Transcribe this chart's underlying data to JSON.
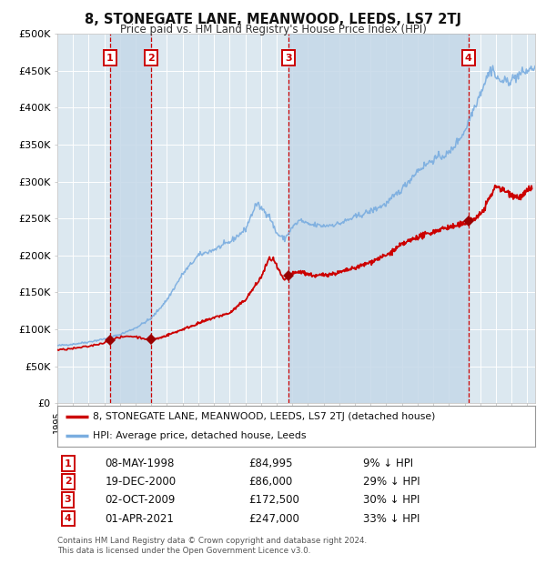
{
  "title": "8, STONEGATE LANE, MEANWOOD, LEEDS, LS7 2TJ",
  "subtitle": "Price paid vs. HM Land Registry's House Price Index (HPI)",
  "background_color": "#ffffff",
  "plot_bg_color": "#dce8f0",
  "grid_color": "#ffffff",
  "red_line_color": "#cc0000",
  "blue_line_color": "#7aade0",
  "sale_marker_color": "#990000",
  "vline_color": "#cc0000",
  "shade_color": "#c5d8e8",
  "ylim": [
    0,
    500000
  ],
  "yticks": [
    0,
    50000,
    100000,
    150000,
    200000,
    250000,
    300000,
    350000,
    400000,
    450000,
    500000
  ],
  "ytick_labels": [
    "£0",
    "£50K",
    "£100K",
    "£150K",
    "£200K",
    "£250K",
    "£300K",
    "£350K",
    "£400K",
    "£450K",
    "£500K"
  ],
  "sales": [
    {
      "num": 1,
      "date_str": "08-MAY-1998",
      "date_num": 1998.36,
      "price": 84995,
      "pct": "9%",
      "direction": "↓"
    },
    {
      "num": 2,
      "date_str": "19-DEC-2000",
      "date_num": 2000.97,
      "price": 86000,
      "pct": "29%",
      "direction": "↓"
    },
    {
      "num": 3,
      "date_str": "02-OCT-2009",
      "date_num": 2009.75,
      "price": 172500,
      "pct": "30%",
      "direction": "↓"
    },
    {
      "num": 4,
      "date_str": "01-APR-2021",
      "date_num": 2021.25,
      "price": 247000,
      "pct": "33%",
      "direction": "↓"
    }
  ],
  "legend_line1": "8, STONEGATE LANE, MEANWOOD, LEEDS, LS7 2TJ (detached house)",
  "legend_line2": "HPI: Average price, detached house, Leeds",
  "footer1": "Contains HM Land Registry data © Crown copyright and database right 2024.",
  "footer2": "This data is licensed under the Open Government Licence v3.0.",
  "xmin": 1995.0,
  "xmax": 2025.5,
  "hpi_anchors": [
    [
      1995.0,
      78000
    ],
    [
      1996.0,
      80000
    ],
    [
      1997.0,
      83000
    ],
    [
      1998.0,
      87000
    ],
    [
      1999.0,
      93000
    ],
    [
      2000.0,
      102000
    ],
    [
      2001.0,
      115000
    ],
    [
      2002.0,
      140000
    ],
    [
      2003.0,
      175000
    ],
    [
      2004.0,
      200000
    ],
    [
      2005.0,
      208000
    ],
    [
      2006.0,
      218000
    ],
    [
      2007.0,
      235000
    ],
    [
      2007.7,
      270000
    ],
    [
      2008.5,
      255000
    ],
    [
      2009.0,
      230000
    ],
    [
      2009.5,
      222000
    ],
    [
      2010.0,
      238000
    ],
    [
      2010.5,
      248000
    ],
    [
      2011.0,
      242000
    ],
    [
      2012.0,
      240000
    ],
    [
      2013.0,
      243000
    ],
    [
      2014.0,
      252000
    ],
    [
      2015.0,
      260000
    ],
    [
      2016.0,
      270000
    ],
    [
      2017.0,
      290000
    ],
    [
      2018.0,
      315000
    ],
    [
      2019.0,
      330000
    ],
    [
      2020.0,
      338000
    ],
    [
      2021.0,
      368000
    ],
    [
      2021.5,
      395000
    ],
    [
      2022.0,
      420000
    ],
    [
      2022.5,
      445000
    ],
    [
      2022.8,
      455000
    ],
    [
      2023.0,
      440000
    ],
    [
      2023.5,
      435000
    ],
    [
      2024.0,
      438000
    ],
    [
      2024.5,
      445000
    ],
    [
      2025.0,
      450000
    ],
    [
      2025.5,
      455000
    ]
  ],
  "red_anchors_seg1": [
    [
      1995.0,
      72000
    ],
    [
      1996.0,
      74000
    ],
    [
      1997.0,
      77000
    ],
    [
      1998.0,
      82000
    ],
    [
      1998.36,
      84995
    ],
    [
      1998.8,
      88000
    ],
    [
      1999.5,
      91000
    ],
    [
      2000.0,
      90000
    ],
    [
      2000.97,
      86000
    ]
  ],
  "red_anchors_seg2": [
    [
      2000.97,
      86000
    ],
    [
      2001.5,
      88000
    ],
    [
      2002.0,
      92000
    ],
    [
      2002.5,
      96000
    ],
    [
      2003.0,
      100000
    ],
    [
      2003.5,
      104000
    ],
    [
      2004.0,
      108000
    ],
    [
      2005.0,
      116000
    ],
    [
      2006.0,
      122000
    ],
    [
      2007.0,
      140000
    ],
    [
      2007.5,
      155000
    ],
    [
      2008.0,
      170000
    ],
    [
      2008.5,
      195000
    ],
    [
      2008.8,
      195000
    ],
    [
      2009.0,
      185000
    ],
    [
      2009.5,
      165000
    ],
    [
      2009.75,
      172500
    ]
  ],
  "red_anchors_seg3": [
    [
      2009.75,
      172500
    ],
    [
      2010.0,
      175000
    ],
    [
      2010.5,
      178000
    ],
    [
      2011.0,
      175000
    ],
    [
      2011.5,
      172000
    ],
    [
      2012.0,
      174000
    ],
    [
      2012.5,
      175000
    ],
    [
      2013.0,
      177000
    ],
    [
      2013.5,
      180000
    ],
    [
      2014.0,
      183000
    ],
    [
      2014.5,
      187000
    ],
    [
      2015.0,
      191000
    ],
    [
      2015.5,
      196000
    ],
    [
      2016.0,
      200000
    ],
    [
      2016.5,
      207000
    ],
    [
      2017.0,
      215000
    ],
    [
      2017.5,
      220000
    ],
    [
      2018.0,
      225000
    ],
    [
      2018.5,
      228000
    ],
    [
      2019.0,
      232000
    ],
    [
      2019.5,
      236000
    ],
    [
      2020.0,
      238000
    ],
    [
      2020.5,
      240000
    ],
    [
      2021.0,
      243000
    ],
    [
      2021.25,
      247000
    ]
  ],
  "red_anchors_seg4": [
    [
      2021.25,
      247000
    ],
    [
      2021.5,
      248000
    ],
    [
      2022.0,
      255000
    ],
    [
      2022.3,
      265000
    ],
    [
      2022.5,
      275000
    ],
    [
      2022.8,
      285000
    ],
    [
      2023.0,
      295000
    ],
    [
      2023.2,
      292000
    ],
    [
      2023.5,
      288000
    ],
    [
      2023.8,
      285000
    ],
    [
      2024.0,
      283000
    ],
    [
      2024.3,
      280000
    ],
    [
      2024.5,
      278000
    ],
    [
      2024.8,
      282000
    ],
    [
      2025.0,
      288000
    ],
    [
      2025.3,
      292000
    ]
  ]
}
